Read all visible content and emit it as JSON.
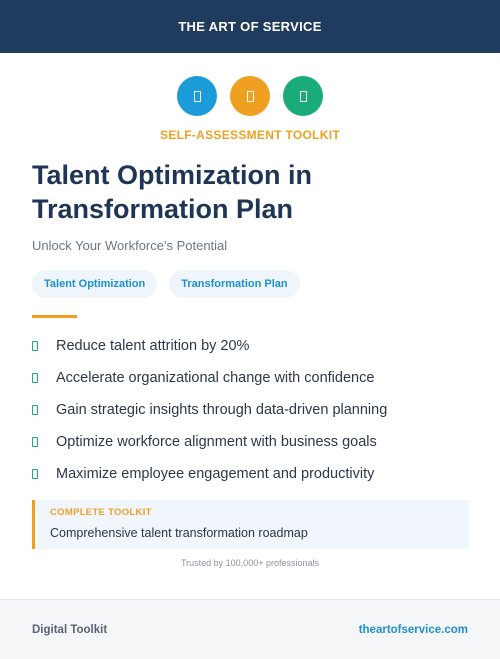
{
  "header": {
    "brand": "THE ART OF SERVICE"
  },
  "icons": [
    {
      "name": "document-icon",
      "color": "#1b9bd8"
    },
    {
      "name": "document-icon",
      "color": "#f0a020"
    },
    {
      "name": "document-icon",
      "color": "#1aab7a"
    }
  ],
  "colors": {
    "accent_orange": "#f0a020",
    "accent_blue": "#1f8fcf",
    "accent_green": "#1aab7a",
    "navy": "#1f3b5e"
  },
  "hero": {
    "kit_label": "SELF-ASSESSMENT TOOLKIT",
    "title_line1": "Talent Optimization in",
    "title_line2": "Transformation Plan",
    "subtitle": "Unlock Your Workforce's Potential"
  },
  "tags": [
    "Talent Optimization",
    "Transformation Plan"
  ],
  "benefits": [
    "Reduce talent attrition by 20%",
    "Accelerate organizational change with confidence",
    "Gain strategic insights through data-driven planning",
    "Optimize workforce alignment with business goals",
    "Maximize employee engagement and productivity"
  ],
  "callout": {
    "label": "COMPLETE TOOLKIT",
    "text": "Comprehensive talent transformation roadmap"
  },
  "trusted": "Trusted by 100,000+ professionals",
  "footer": {
    "left": "Digital Toolkit",
    "right": "theartofservice.com"
  }
}
